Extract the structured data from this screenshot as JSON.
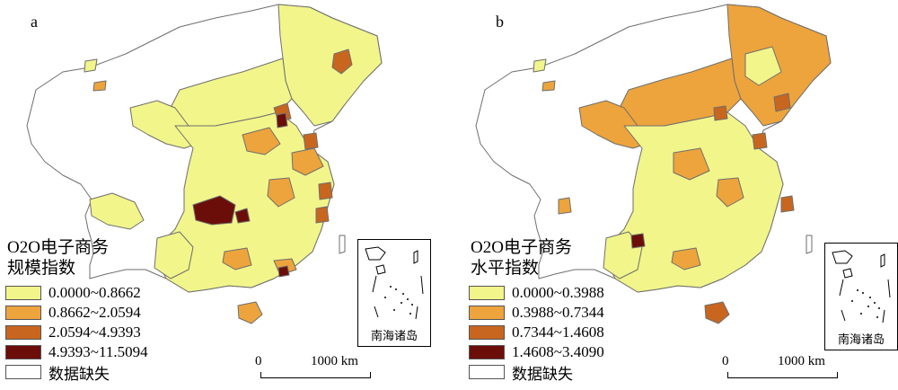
{
  "legend_colors": {
    "class1": "#f2f58a",
    "class2": "#eda43c",
    "class3": "#c8661f",
    "class4": "#6b0e0a",
    "missing": "#ffffff",
    "border": "#6e6e6e"
  },
  "panels": [
    {
      "label": "a",
      "legend_title_line1": "O2O电子商务",
      "legend_title_line2": "规模指数",
      "legend_items": [
        {
          "label": "0.0000~0.8662",
          "class": "class1"
        },
        {
          "label": "0.8662~2.0594",
          "class": "class2"
        },
        {
          "label": "2.0594~4.9393",
          "class": "class3"
        },
        {
          "label": "4.9393~11.5094",
          "class": "class4"
        },
        {
          "label": "数据缺失",
          "class": "missing"
        }
      ],
      "inset_label": "南海诸岛",
      "scale_start": "0",
      "scale_end": "1000 km"
    },
    {
      "label": "b",
      "legend_title_line1": "O2O电子商务",
      "legend_title_line2": "水平指数",
      "legend_items": [
        {
          "label": "0.0000~0.3988",
          "class": "class1"
        },
        {
          "label": "0.3988~0.7344",
          "class": "class2"
        },
        {
          "label": "0.7344~1.4608",
          "class": "class3"
        },
        {
          "label": "1.4608~3.4090",
          "class": "class4"
        },
        {
          "label": "数据缺失",
          "class": "missing"
        }
      ],
      "inset_label": "南海诸岛",
      "scale_start": "0",
      "scale_end": "1000 km"
    }
  ]
}
